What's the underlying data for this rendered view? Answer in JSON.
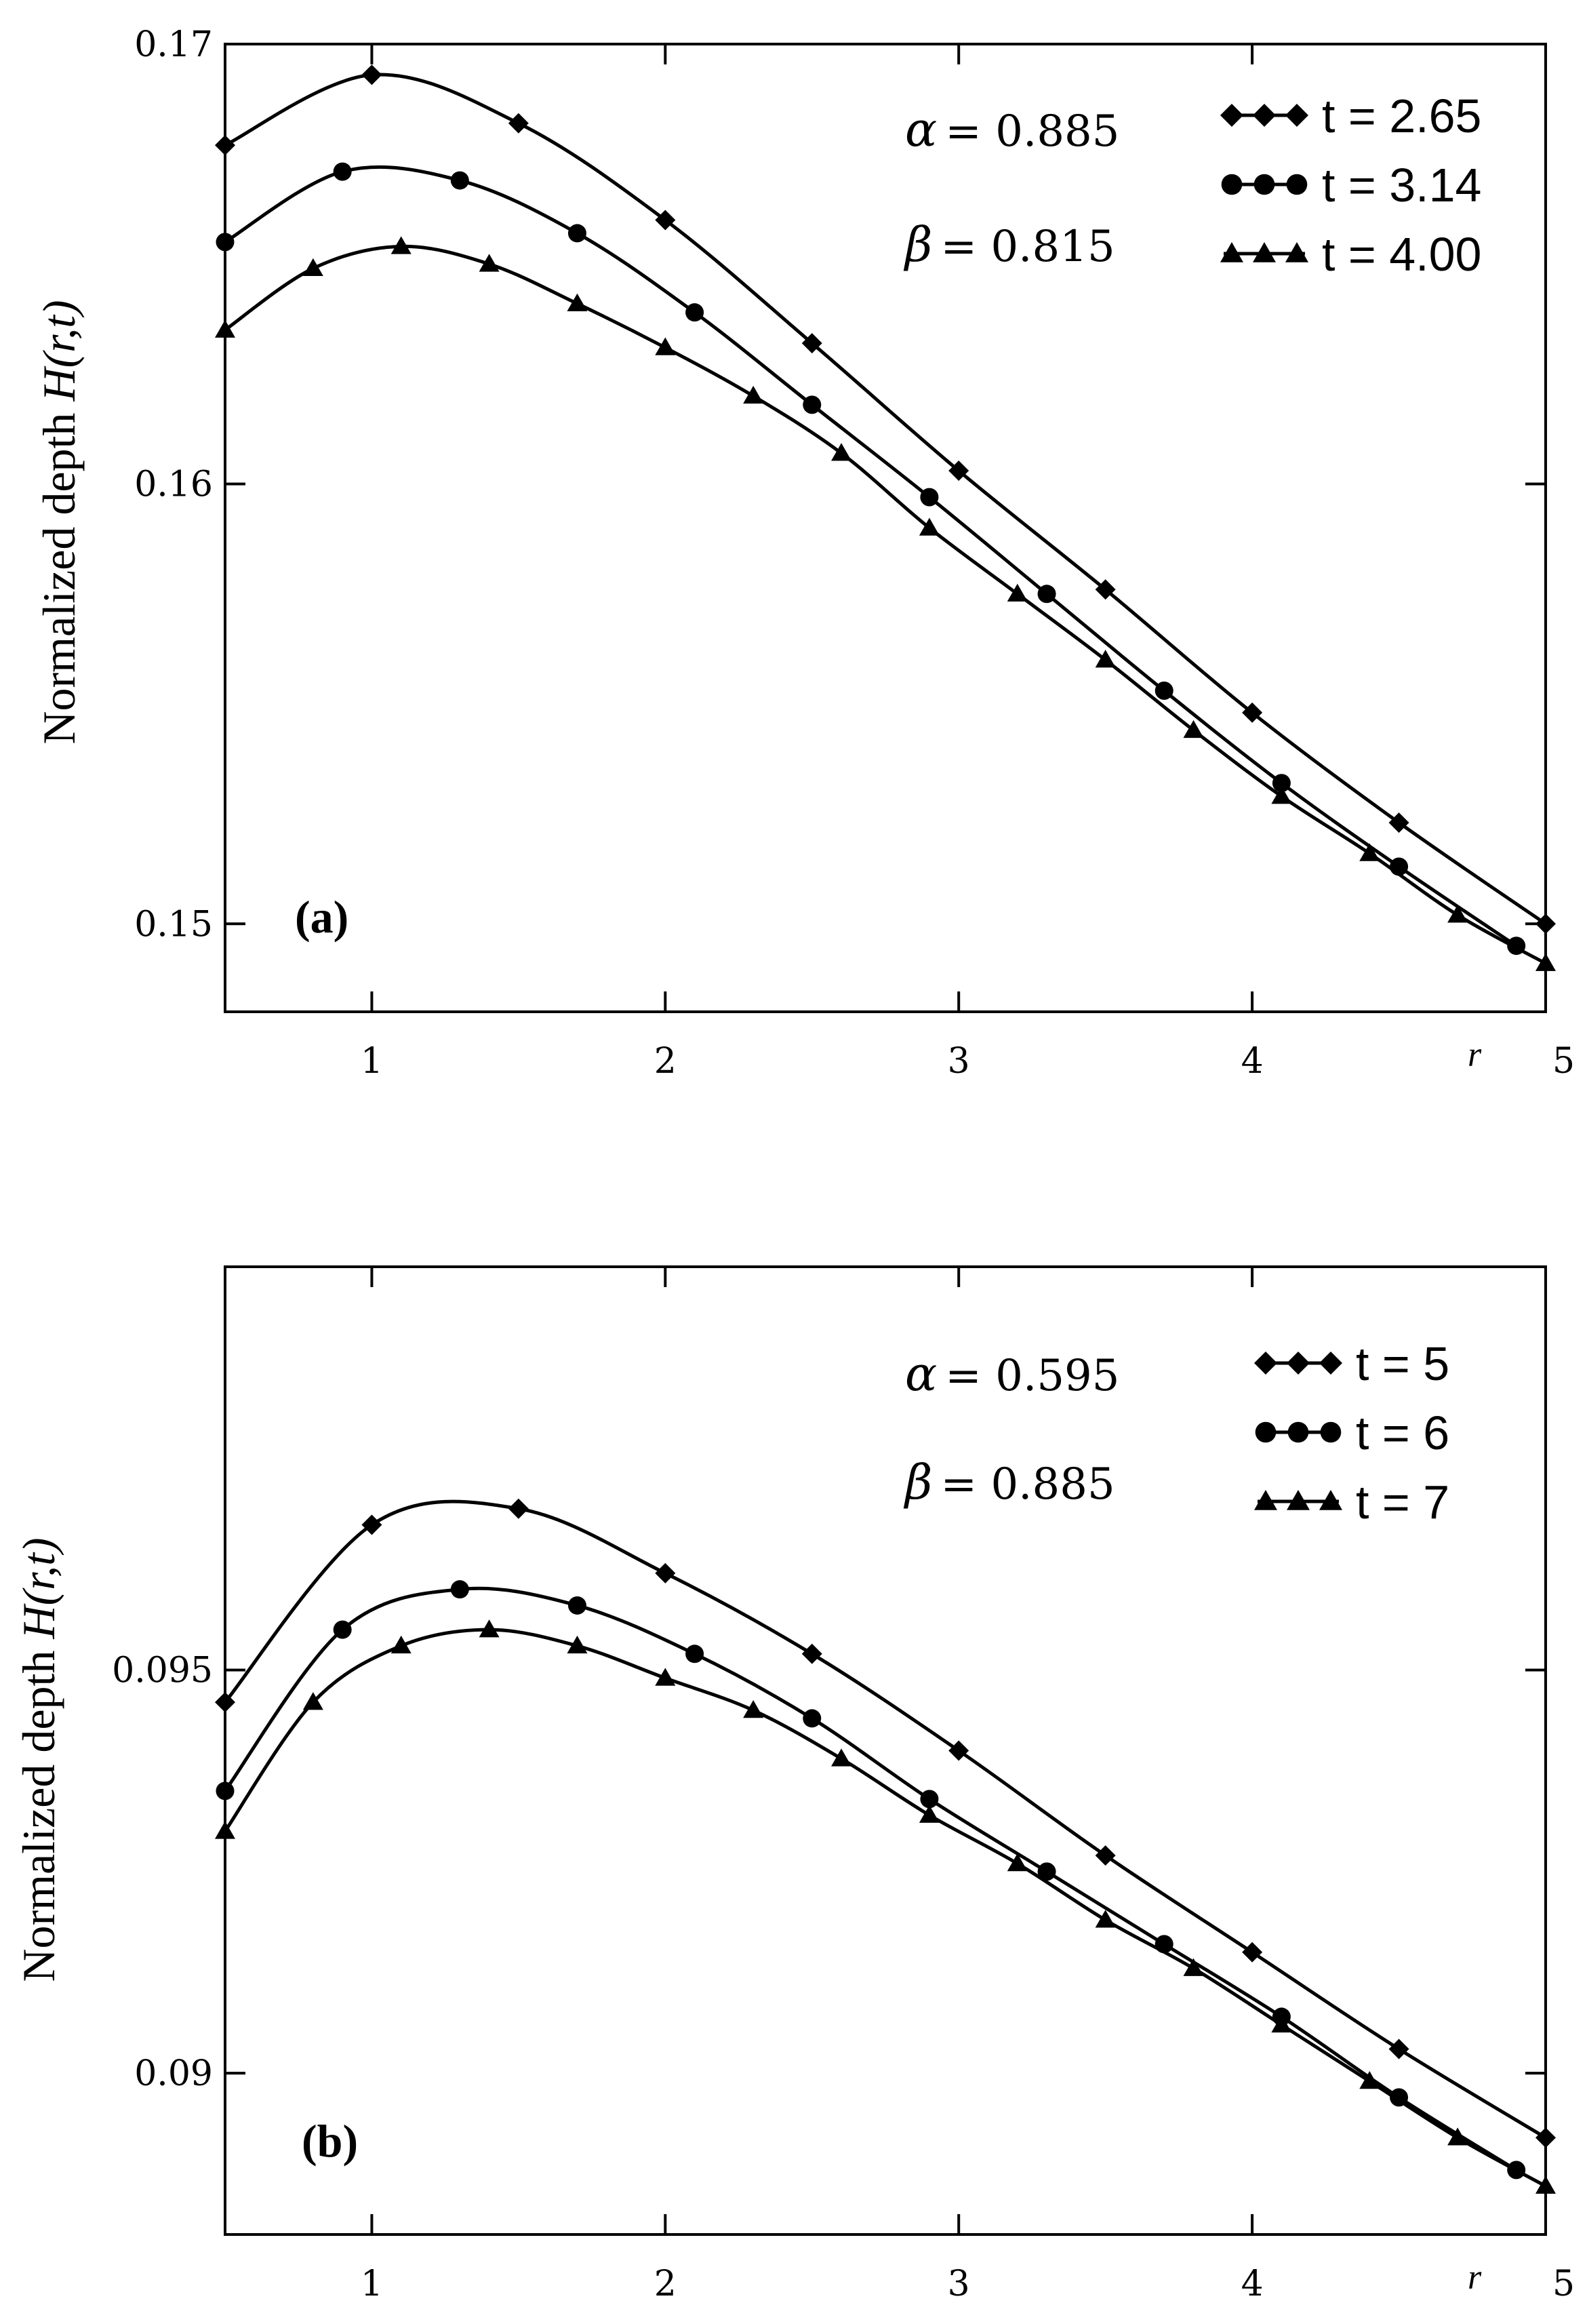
{
  "chart_data": [
    {
      "type": "line",
      "panel_label": "(a)",
      "xlabel": "r",
      "ylabel": "Normalized depth",
      "ylabel_func": "H(r,t)",
      "xlim": [
        0.5,
        5
      ],
      "ylim": [
        0.148,
        0.17
      ],
      "xticks": [
        1,
        2,
        3,
        4,
        5
      ],
      "xtick_labels": [
        "1",
        "2",
        "3",
        "4",
        "5"
      ],
      "yticks": [
        0.15,
        0.16,
        0.17
      ],
      "ytick_labels": [
        "0.15",
        "0.16",
        "0.17"
      ],
      "params": {
        "alpha_symbol": "α",
        "alpha_value": "= 0.885",
        "beta_symbol": "β",
        "beta_value": "= 0.815"
      },
      "legend_position": "top-right",
      "series": [
        {
          "name": "t = 2.65",
          "marker": "diamond",
          "x": [
            0.5,
            1.0,
            1.5,
            2.0,
            2.5,
            3.0,
            3.5,
            4.0,
            4.5,
            5.0
          ],
          "y": [
            0.1677,
            0.1693,
            0.1682,
            0.166,
            0.1632,
            0.1603,
            0.1576,
            0.1548,
            0.1523,
            0.15
          ]
        },
        {
          "name": "t = 3.14",
          "marker": "circle",
          "x": [
            0.5,
            0.9,
            1.3,
            1.7,
            2.1,
            2.5,
            2.9,
            3.3,
            3.7,
            4.1,
            4.5,
            4.9
          ],
          "y": [
            0.1655,
            0.1671,
            0.1669,
            0.1657,
            0.1639,
            0.1618,
            0.1597,
            0.1575,
            0.1553,
            0.1532,
            0.1513,
            0.1495
          ]
        },
        {
          "name": "t = 4.00",
          "marker": "triangle",
          "x": [
            0.5,
            0.8,
            1.1,
            1.4,
            1.7,
            2.0,
            2.3,
            2.6,
            2.9,
            3.2,
            3.5,
            3.8,
            4.1,
            4.4,
            4.7,
            5.0
          ],
          "y": [
            0.1635,
            0.1649,
            0.1654,
            0.165,
            0.1641,
            0.1631,
            0.162,
            0.1607,
            0.159,
            0.1575,
            0.156,
            0.1544,
            0.1529,
            0.1516,
            0.1502,
            0.1491
          ]
        }
      ]
    },
    {
      "type": "line",
      "panel_label": "(b)",
      "xlabel": "r",
      "ylabel": "Normalized depth",
      "ylabel_func": "H(r,t)",
      "xlim": [
        0.5,
        5
      ],
      "ylim": [
        0.088,
        0.1
      ],
      "xticks": [
        1,
        2,
        3,
        4,
        5
      ],
      "xtick_labels": [
        "1",
        "2",
        "3",
        "4",
        "5"
      ],
      "yticks": [
        0.09,
        0.095
      ],
      "ytick_labels": [
        "0.09",
        "0.095"
      ],
      "params": {
        "alpha_symbol": "α",
        "alpha_value": "= 0.595",
        "beta_symbol": "β",
        "beta_value": "= 0.885"
      },
      "legend_position": "top-right",
      "series": [
        {
          "name": "t = 5",
          "marker": "diamond",
          "x": [
            0.5,
            1.0,
            1.5,
            2.0,
            2.5,
            3.0,
            3.5,
            4.0,
            4.5,
            5.0
          ],
          "y": [
            0.0946,
            0.0968,
            0.097,
            0.0962,
            0.0952,
            0.094,
            0.0927,
            0.0915,
            0.0903,
            0.0892
          ]
        },
        {
          "name": "t = 6",
          "marker": "circle",
          "x": [
            0.5,
            0.9,
            1.3,
            1.7,
            2.1,
            2.5,
            2.9,
            3.3,
            3.7,
            4.1,
            4.5,
            4.9
          ],
          "y": [
            0.0935,
            0.0955,
            0.096,
            0.0958,
            0.0952,
            0.0944,
            0.0934,
            0.0925,
            0.0916,
            0.0907,
            0.0897,
            0.0888
          ]
        },
        {
          "name": "t = 7",
          "marker": "triangle",
          "x": [
            0.5,
            0.8,
            1.1,
            1.4,
            1.7,
            2.0,
            2.3,
            2.6,
            2.9,
            3.2,
            3.5,
            3.8,
            4.1,
            4.4,
            4.7,
            5.0
          ],
          "y": [
            0.093,
            0.0946,
            0.0953,
            0.0955,
            0.0953,
            0.0949,
            0.0945,
            0.0939,
            0.0932,
            0.0926,
            0.0919,
            0.0913,
            0.0906,
            0.0899,
            0.0892,
            0.0886
          ]
        }
      ]
    }
  ]
}
